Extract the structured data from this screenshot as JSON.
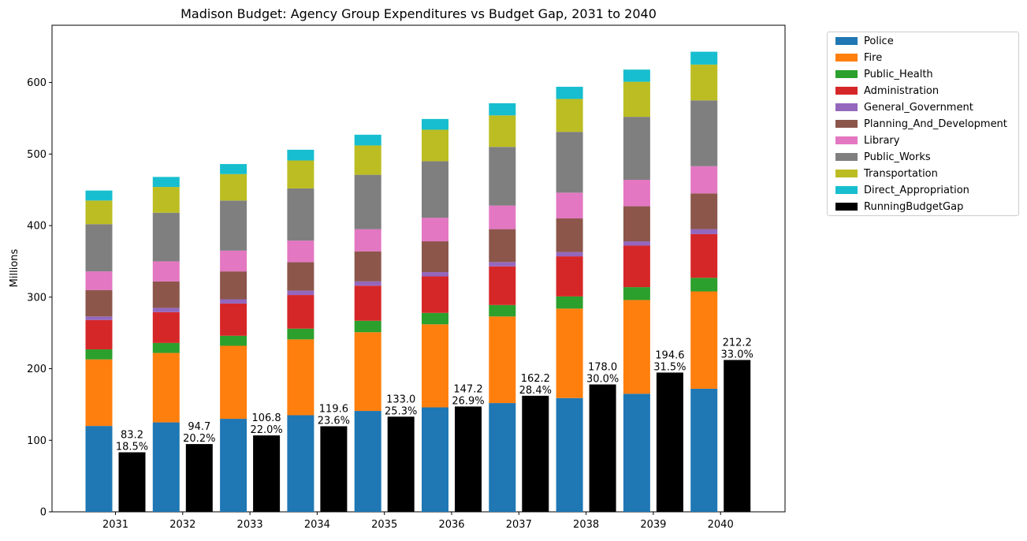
{
  "chart_data": {
    "type": "bar",
    "title": "Madison Budget: Agency Group Expenditures vs Budget Gap, 2031 to 2040",
    "xlabel": "",
    "ylabel": "Millions",
    "ylim": [
      0,
      680
    ],
    "yticks": [
      "0",
      "100",
      "200",
      "300",
      "400",
      "500",
      "600"
    ],
    "categories": [
      "2031",
      "2032",
      "2033",
      "2034",
      "2035",
      "2036",
      "2037",
      "2038",
      "2039",
      "2040"
    ],
    "grid": false,
    "legend_position": "outside-top-right",
    "stacked_series": [
      {
        "name": "Police",
        "color": "#1f77b4",
        "values": [
          120,
          125,
          130,
          135,
          141,
          146,
          152,
          159,
          165,
          172
        ]
      },
      {
        "name": "Fire",
        "color": "#ff7f0e",
        "values": [
          93,
          97,
          102,
          106,
          110,
          116,
          121,
          125,
          131,
          136
        ]
      },
      {
        "name": "Public_Health",
        "color": "#2ca02c",
        "values": [
          14,
          14,
          14,
          15,
          16,
          16,
          16,
          17,
          18,
          19
        ]
      },
      {
        "name": "Administration",
        "color": "#d62728",
        "values": [
          41,
          43,
          45,
          47,
          49,
          51,
          54,
          56,
          58,
          61
        ]
      },
      {
        "name": "General_Government",
        "color": "#9467bd",
        "values": [
          5,
          6,
          6,
          6,
          6,
          6,
          6,
          6,
          6,
          7
        ]
      },
      {
        "name": "Planning_And_Development",
        "color": "#8c564b",
        "values": [
          37,
          37,
          39,
          40,
          42,
          43,
          46,
          47,
          49,
          50
        ]
      },
      {
        "name": "Library",
        "color": "#e377c2",
        "values": [
          26,
          28,
          29,
          30,
          31,
          33,
          33,
          36,
          37,
          38
        ]
      },
      {
        "name": "Public_Works",
        "color": "#7f7f7f",
        "values": [
          66,
          68,
          70,
          73,
          76,
          79,
          82,
          85,
          88,
          92
        ]
      },
      {
        "name": "Transportation",
        "color": "#bcbd22",
        "values": [
          33,
          36,
          37,
          39,
          41,
          44,
          44,
          46,
          49,
          50
        ]
      },
      {
        "name": "Direct_Appropriation",
        "color": "#17becf",
        "values": [
          14,
          14,
          14,
          15,
          15,
          15,
          17,
          17,
          17,
          18
        ]
      }
    ],
    "gap_series": {
      "name": "RunningBudgetGap",
      "color": "#000000",
      "values": [
        83.2,
        94.7,
        106.8,
        119.6,
        133.0,
        147.2,
        162.2,
        178.0,
        194.6,
        212.2
      ],
      "labels": [
        [
          "83.2",
          "18.5%"
        ],
        [
          "94.7",
          "20.2%"
        ],
        [
          "106.8",
          "22.0%"
        ],
        [
          "119.6",
          "23.6%"
        ],
        [
          "133.0",
          "25.3%"
        ],
        [
          "147.2",
          "26.9%"
        ],
        [
          "162.2",
          "28.4%"
        ],
        [
          "178.0",
          "30.0%"
        ],
        [
          "194.6",
          "31.5%"
        ],
        [
          "212.2",
          "33.0%"
        ]
      ]
    }
  }
}
